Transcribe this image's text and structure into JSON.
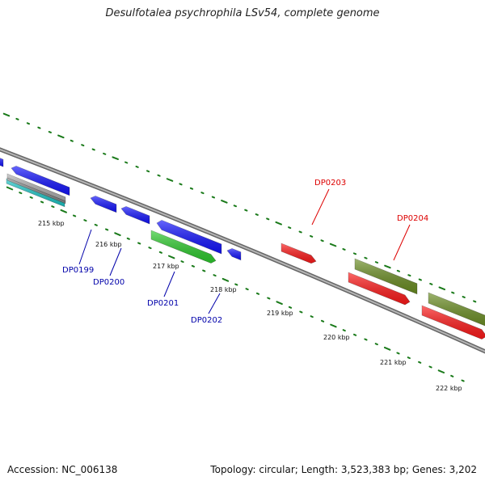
{
  "title": "Desulfotalea psychrophila LSv54, complete genome",
  "footer": {
    "accession": "Accession: NC_006138",
    "summary": "Topology: circular; Length: 3,523,383 bp; Genes: 3,202"
  },
  "colors": {
    "backbone": "#808080",
    "ticks": "#1a7a1a",
    "blue_gene": "#1414ff",
    "red_gene": "#ff1a1a",
    "green_gene": "#2ecc2e",
    "olive_gene": "#6b8e23",
    "gray_gene": "#b0b0b0",
    "cyan_gene": "#1ec8c8",
    "blue_label": "#0000aa",
    "red_label": "#dd0000"
  },
  "ticks": [
    {
      "label": "215 kbp"
    },
    {
      "label": "216 kbp"
    },
    {
      "label": "217 kbp"
    },
    {
      "label": "218 kbp"
    },
    {
      "label": "219 kbp"
    },
    {
      "label": "220 kbp"
    },
    {
      "label": "221 kbp"
    },
    {
      "label": "222 kbp"
    }
  ],
  "gene_labels": [
    {
      "name": "DP0199",
      "color": "blue"
    },
    {
      "name": "DP0200",
      "color": "blue"
    },
    {
      "name": "DP0201",
      "color": "blue"
    },
    {
      "name": "DP0202",
      "color": "blue"
    },
    {
      "name": "DP0203",
      "color": "red"
    },
    {
      "name": "DP0204",
      "color": "red"
    }
  ]
}
